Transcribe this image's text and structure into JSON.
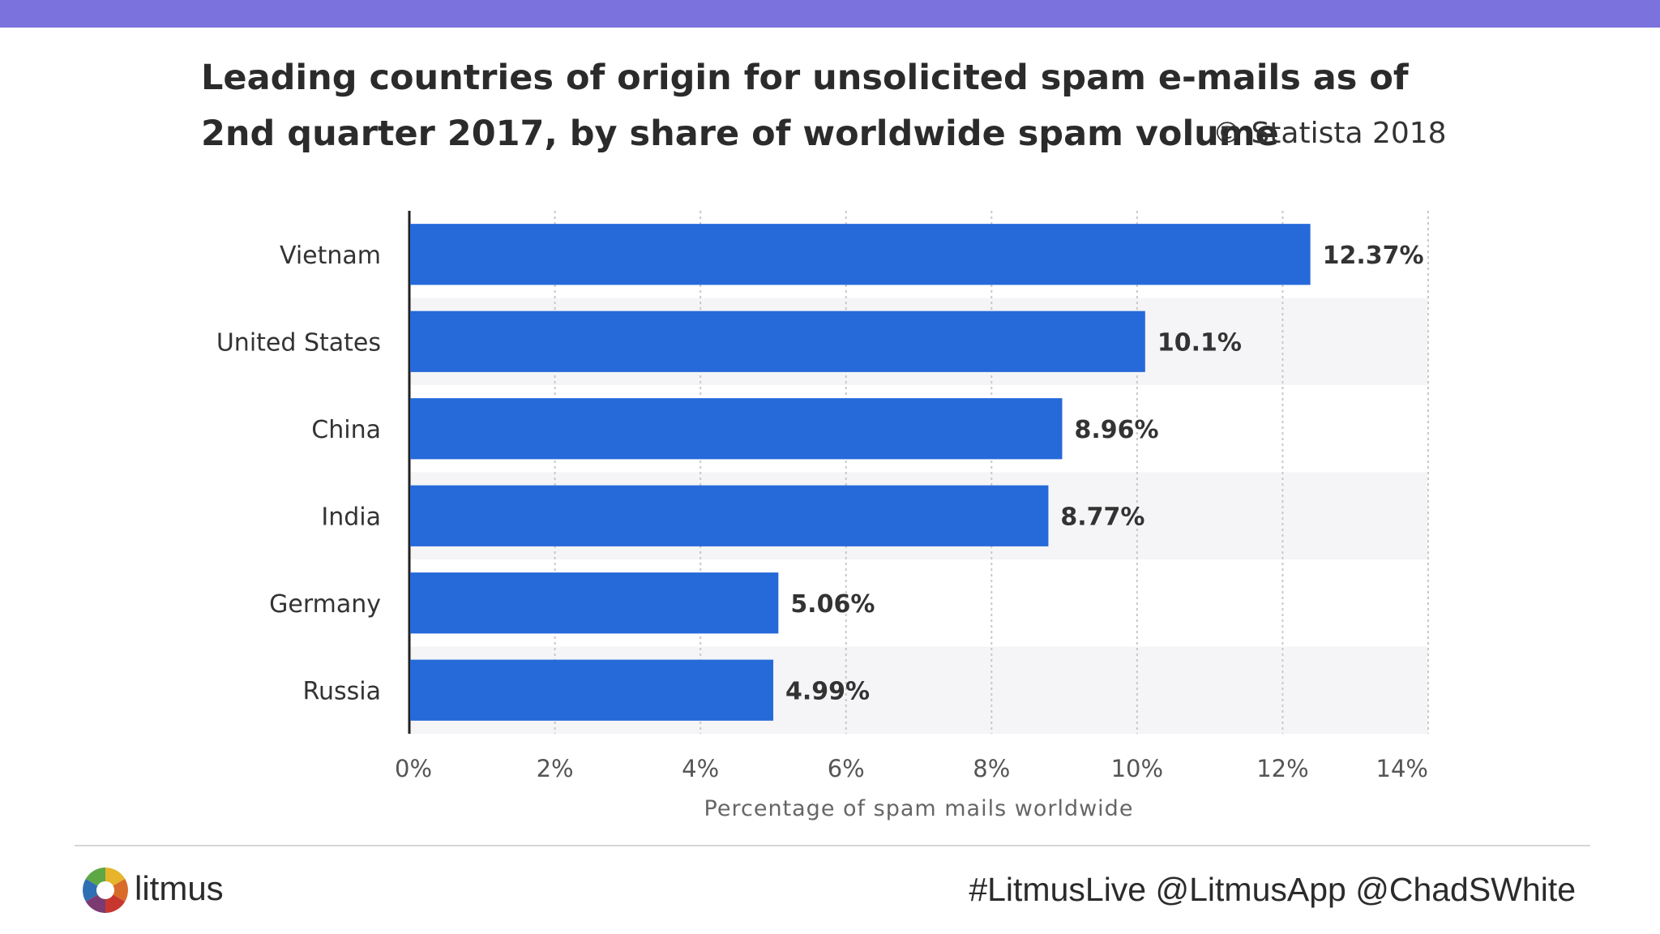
{
  "header": {
    "title": "Leading countries of origin for unsolicited spam e-mails as of 2nd quarter 2017, by share of worldwide spam volume",
    "copyright": "© Statista 2018"
  },
  "colors": {
    "accent_bar": "#7b72de",
    "bar": "#2669d9",
    "band": "#f5f5f7",
    "grid": "#c8c8c8",
    "axis": "#222222",
    "text": "#333333"
  },
  "chart_data": {
    "type": "bar",
    "orientation": "horizontal",
    "title": "Leading countries of origin for unsolicited spam e-mails as of 2nd quarter 2017, by share of worldwide spam volume",
    "categories": [
      "Vietnam",
      "United States",
      "China",
      "India",
      "Germany",
      "Russia"
    ],
    "values": [
      12.37,
      10.1,
      8.96,
      8.77,
      5.06,
      4.99
    ],
    "value_labels": [
      "12.37%",
      "10.1%",
      "8.96%",
      "8.77%",
      "5.06%",
      "4.99%"
    ],
    "xlabel": "Percentage of spam mails worldwide",
    "ylabel": "",
    "xlim": [
      0,
      14
    ],
    "xticks": [
      0,
      2,
      4,
      6,
      8,
      10,
      12,
      14
    ],
    "xtick_labels": [
      "0%",
      "2%",
      "4%",
      "6%",
      "8%",
      "10%",
      "12%",
      "14%"
    ],
    "grid": true
  },
  "footer": {
    "logo_text": "litmus",
    "hashtags": "#LitmusLive @LitmusApp @ChadSWhite"
  }
}
